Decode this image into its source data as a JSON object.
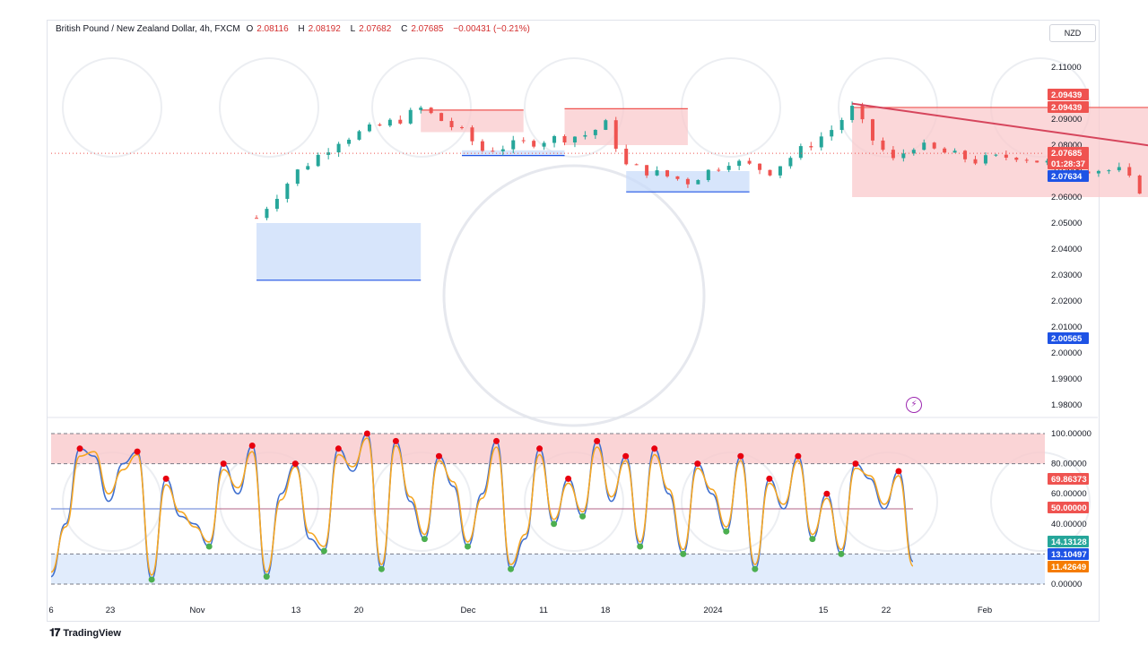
{
  "header": {
    "symbol": "British Pound / New Zealand Dollar, 4h, FXCM",
    "open_label": "O",
    "open": "2.08116",
    "high_label": "H",
    "high": "2.08192",
    "low_label": "L",
    "low": "2.07682",
    "close_label": "C",
    "close": "2.07685",
    "change": "−0.00431 (−0.21%)"
  },
  "currency_button": "NZD",
  "branding": "TradingView",
  "colors": {
    "up": "#26a69a",
    "down": "#ef5350",
    "trendline": "#d6455c",
    "supply_zone": "#f9c9cc",
    "demand_zone": "#c9dcfa",
    "stoch_k": "#3f6fcf",
    "stoch_d": "#f5a623",
    "top_marker": "#e8000f",
    "bottom_marker": "#4caf50"
  },
  "chart_data": [
    {
      "type": "candlestick",
      "title": "",
      "ylim": [
        1.975,
        2.115
      ],
      "y_ticks": [
        "2.11000",
        "2.10000",
        "2.09000",
        "2.08000",
        "2.07000",
        "2.06000",
        "2.05000",
        "2.04000",
        "2.03000",
        "2.02000",
        "2.01000",
        "2.00000",
        "1.99000",
        "1.98000"
      ],
      "price_tags": [
        {
          "label": "2.09439",
          "kind": "resistance"
        },
        {
          "label": "2.09439",
          "kind": "resistance"
        },
        {
          "label": "2.07685",
          "kind": "last"
        },
        {
          "label": "01:28:37",
          "kind": "countdown"
        },
        {
          "label": "2.07634",
          "kind": "support"
        },
        {
          "label": "2.00565",
          "kind": "support"
        }
      ],
      "x_ticks": [
        "6",
        "23",
        "Nov",
        "13",
        "20",
        "Dec",
        "11",
        "18",
        "2024",
        "15",
        "22",
        "Feb"
      ],
      "close_path": [
        [
          "Oct 16",
          2.052
        ],
        [
          "Oct 18",
          2.07
        ],
        [
          "Oct 20",
          2.082
        ],
        [
          "Oct 23",
          2.09
        ],
        [
          "Oct 24",
          2.094
        ],
        [
          "Oct 26",
          2.085
        ],
        [
          "Oct 27",
          2.078
        ],
        [
          "Oct 30",
          2.082
        ],
        [
          "Nov 1",
          2.084
        ],
        [
          "Nov 2",
          2.088
        ],
        [
          "Nov 3",
          2.072
        ],
        [
          "Nov 6",
          2.066
        ],
        [
          "Nov 8",
          2.074
        ],
        [
          "Nov 10",
          2.07
        ],
        [
          "Nov 13",
          2.086
        ],
        [
          "Nov 14",
          2.094
        ],
        [
          "Nov 15",
          2.082
        ],
        [
          "Nov 16",
          2.074
        ],
        [
          "Nov 17",
          2.08
        ],
        [
          "Nov 20",
          2.074
        ],
        [
          "Nov 22",
          2.076
        ],
        [
          "Nov 24",
          2.072
        ],
        [
          "Nov 27",
          2.07
        ],
        [
          "Nov 29",
          2.056
        ],
        [
          "Dec 1",
          2.046
        ],
        [
          "Dec 4",
          2.052
        ],
        [
          "Dec 5",
          2.044
        ],
        [
          "Dec 7",
          2.048
        ],
        [
          "Dec 8",
          2.04
        ],
        [
          "Dec 11",
          2.052
        ],
        [
          "Dec 12",
          2.046
        ],
        [
          "Dec 14",
          2.058
        ],
        [
          "Dec 15",
          2.032
        ],
        [
          "Dec 18",
          2.038
        ],
        [
          "Dec 19",
          2.028
        ],
        [
          "Dec 21",
          2.018
        ],
        [
          "Dec 22",
          2.022
        ],
        [
          "Dec 26",
          2.01
        ],
        [
          "Dec 28",
          2.018
        ],
        [
          "Dec 29",
          2.01
        ],
        [
          "Jan 2",
          2.016
        ],
        [
          "Jan 3",
          2.032
        ],
        [
          "Jan 4",
          2.036
        ],
        [
          "Jan 5",
          2.04
        ],
        [
          "Jan 8",
          2.04
        ],
        [
          "Jan 9",
          2.044
        ],
        [
          "Jan 10",
          2.042
        ],
        [
          "Jan 11",
          2.048
        ],
        [
          "Jan 12",
          2.05
        ],
        [
          "Jan 15",
          2.064
        ],
        [
          "Jan 16",
          2.068
        ],
        [
          "Jan 17",
          2.078
        ],
        [
          "Jan 18",
          2.074
        ],
        [
          "Jan 19",
          2.084
        ],
        [
          "Jan 22",
          2.092
        ],
        [
          "Jan 23",
          2.086
        ],
        [
          "Jan 24",
          2.077
        ]
      ],
      "trendline": {
        "from": [
          "Nov 14",
          2.096
        ],
        "to": [
          "Jan 31",
          2.009
        ]
      },
      "supply_zones": [
        {
          "x0": "Oct 24",
          "x1": "Oct 29",
          "top": 2.0935,
          "bottom": 2.085
        },
        {
          "x0": "Oct 31",
          "x1": "Nov 6",
          "top": 2.094,
          "bottom": 2.08
        },
        {
          "x0": "Nov 14",
          "x1": "Dec 11",
          "top": 2.0945,
          "bottom": 2.06
        },
        {
          "x0": "Dec 12",
          "x1": "Dec 29",
          "top": 2.06,
          "bottom": 2.024
        }
      ],
      "demand_zones": [
        {
          "x0": "Oct 16",
          "x1": "Oct 24",
          "top": 2.05,
          "bottom": 2.028
        },
        {
          "x0": "Oct 26",
          "x1": "Oct 31",
          "top": 2.078,
          "bottom": 2.076
        },
        {
          "x0": "Nov 3",
          "x1": "Nov 9",
          "top": 2.07,
          "bottom": 2.062
        },
        {
          "x0": "Jan 9",
          "x1": "Jan 24",
          "top": 2.035,
          "bottom": 2.0056
        },
        {
          "x0": "Jan 20",
          "x1": "Jan 24",
          "top": 2.076,
          "bottom": 2.0056
        }
      ]
    },
    {
      "type": "line",
      "title": "",
      "ylim": [
        -2,
        103
      ],
      "y_ticks": [
        "100.00000",
        "80.00000",
        "60.00000",
        "40.00000",
        "20.00000",
        "0.00000"
      ],
      "levels": {
        "overbought": 80,
        "mid": 50,
        "oversold": 20
      },
      "value_tags": [
        {
          "label": "69.86373",
          "kind": "red"
        },
        {
          "label": "50.00000",
          "kind": "red"
        },
        {
          "label": "14.13128",
          "kind": "green"
        },
        {
          "label": "13.10497",
          "kind": "blue"
        },
        {
          "label": "11.42649",
          "kind": "orange"
        }
      ],
      "series": [
        {
          "values": [
            5,
            40,
            90,
            85,
            55,
            80,
            88,
            3,
            70,
            45,
            40,
            25,
            80,
            60,
            92,
            5,
            60,
            80,
            30,
            22,
            90,
            75,
            100,
            10,
            95,
            55,
            30,
            85,
            65,
            25,
            60,
            95,
            10,
            30,
            90,
            40,
            70,
            45,
            95,
            55,
            85,
            25,
            90,
            60,
            20,
            80,
            60,
            35,
            85,
            10,
            70,
            50,
            85,
            30,
            60,
            20,
            80,
            70,
            50,
            75,
            15
          ]
        },
        {
          "values": [
            8,
            38,
            85,
            88,
            60,
            76,
            86,
            6,
            66,
            48,
            38,
            28,
            76,
            64,
            88,
            8,
            56,
            78,
            34,
            25,
            86,
            78,
            97,
            13,
            92,
            58,
            33,
            82,
            68,
            28,
            57,
            91,
            13,
            33,
            86,
            43,
            67,
            48,
            91,
            58,
            82,
            28,
            86,
            63,
            23,
            77,
            63,
            38,
            82,
            13,
            67,
            53,
            82,
            33,
            57,
            23,
            77,
            72,
            53,
            72,
            12
          ]
        }
      ]
    }
  ]
}
